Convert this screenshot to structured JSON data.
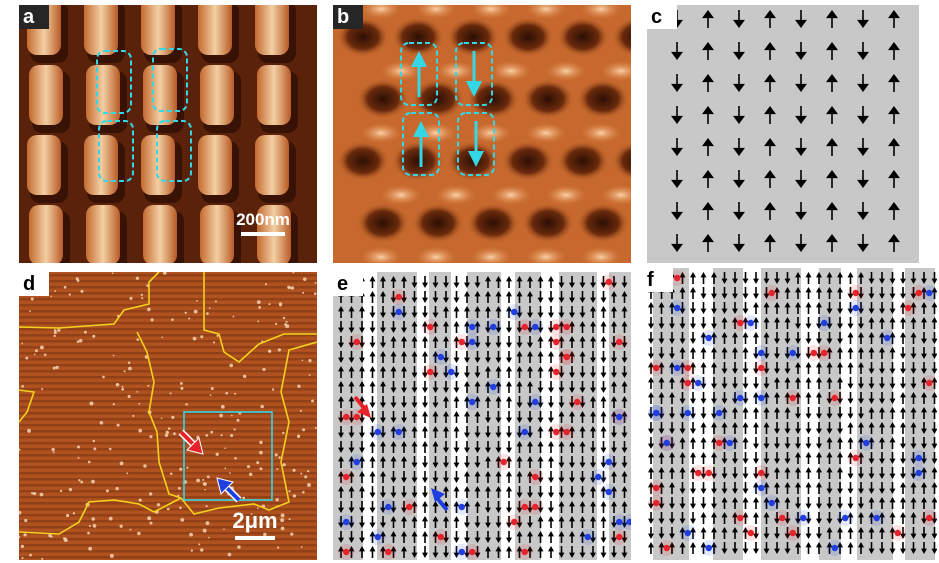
{
  "figure": {
    "panels": [
      {
        "id": "a",
        "label": "a",
        "scale_bar": "200nm"
      },
      {
        "id": "b",
        "label": "b"
      },
      {
        "id": "c",
        "label": "c"
      },
      {
        "id": "d",
        "label": "d",
        "scale_bar": "2μm"
      },
      {
        "id": "e",
        "label": "e"
      },
      {
        "id": "f",
        "label": "f"
      }
    ]
  },
  "colors": {
    "afm_dark": "#3a1505",
    "afm_mid": "#a24a1c",
    "afm_light": "#f2c79a",
    "mfm_dark": "#2d0f04",
    "mfm_light": "#f7b07c",
    "highlight_cyan": "#33d7e6",
    "domain_wall_yellow": "#f2d21c",
    "charge_red": "#e8222b",
    "charge_blue": "#1f3fe0",
    "shade_gray": "#c8c8c8"
  },
  "icons": [
    "arrow-up-icon",
    "arrow-down-icon",
    "red-arrow-icon",
    "blue-arrow-icon"
  ]
}
